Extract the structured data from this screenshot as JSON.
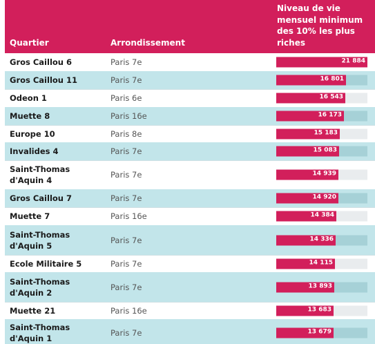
{
  "header": {
    "quartier": "Quartier",
    "arrondissement": "Arrondissement",
    "niveau": "Niveau de vie mensuel minimum des 10% les plus riches"
  },
  "colors": {
    "accent": "#d21f5b",
    "row_alt": "#c2e5ea",
    "track": "#e9ecee",
    "track_alt": "#a6d1d7"
  },
  "scale_max": 21884,
  "rows": [
    {
      "quartier": "Gros Caillou 6",
      "arrondissement": "Paris 7e",
      "value": 21884,
      "label": "21 884"
    },
    {
      "quartier": "Gros Caillou 11",
      "arrondissement": "Paris 7e",
      "value": 16801,
      "label": "16 801"
    },
    {
      "quartier": "Odeon 1",
      "arrondissement": "Paris 6e",
      "value": 16543,
      "label": "16 543"
    },
    {
      "quartier": "Muette 8",
      "arrondissement": "Paris 16e",
      "value": 16173,
      "label": "16 173"
    },
    {
      "quartier": "Europe 10",
      "arrondissement": "Paris 8e",
      "value": 15183,
      "label": "15 183"
    },
    {
      "quartier": "Invalides 4",
      "arrondissement": "Paris 7e",
      "value": 15083,
      "label": "15 083"
    },
    {
      "quartier": "Saint-Thomas d'Aquin 4",
      "arrondissement": "Paris 7e",
      "value": 14939,
      "label": "14 939"
    },
    {
      "quartier": "Gros Caillou 7",
      "arrondissement": "Paris 7e",
      "value": 14920,
      "label": "14 920"
    },
    {
      "quartier": "Muette 7",
      "arrondissement": "Paris 16e",
      "value": 14384,
      "label": "14 384"
    },
    {
      "quartier": "Saint-Thomas d'Aquin 5",
      "arrondissement": "Paris 7e",
      "value": 14336,
      "label": "14 336"
    },
    {
      "quartier": "Ecole Militaire 5",
      "arrondissement": "Paris 7e",
      "value": 14115,
      "label": "14 115"
    },
    {
      "quartier": "Saint-Thomas d'Aquin 2",
      "arrondissement": "Paris 7e",
      "value": 13893,
      "label": "13 893"
    },
    {
      "quartier": "Muette 21",
      "arrondissement": "Paris 16e",
      "value": 13683,
      "label": "13 683"
    },
    {
      "quartier": "Saint-Thomas d'Aquin 1",
      "arrondissement": "Paris 7e",
      "value": 13679,
      "label": "13 679"
    }
  ]
}
